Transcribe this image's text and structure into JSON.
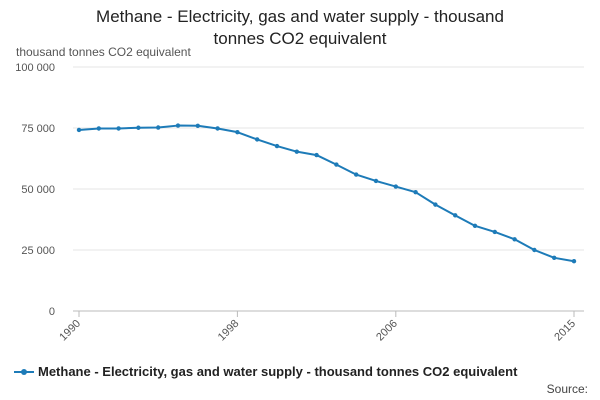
{
  "chart_data": {
    "type": "line",
    "title": "Methane - Electricity, gas and water supply - thousand tonnes CO2 equivalent",
    "title_line1": "Methane - Electricity, gas and water supply - thousand",
    "title_line2": "tonnes CO2 equivalent",
    "ylabel": "thousand tonnes CO2 equivalent",
    "xlabel": "",
    "ylim": [
      0,
      100000
    ],
    "xlim": [
      1990,
      2015
    ],
    "yticks": [
      0,
      25000,
      50000,
      75000,
      100000
    ],
    "ytick_labels": [
      "0",
      "25 000",
      "50 000",
      "75 000",
      "100 000"
    ],
    "xticks": [
      1990,
      1998,
      2006,
      2015
    ],
    "xtick_labels": [
      "1990",
      "1998",
      "2006",
      "2015"
    ],
    "grid": true,
    "legend_position": "bottom",
    "series": [
      {
        "name": "Methane - Electricity, gas and water supply - thousand tonnes CO2 equivalent",
        "color": "#1d7bb8",
        "x": [
          1990,
          1991,
          1992,
          1993,
          1994,
          1995,
          1996,
          1997,
          1998,
          1999,
          2000,
          2001,
          2002,
          2003,
          2004,
          2005,
          2006,
          2007,
          2008,
          2009,
          2010,
          2011,
          2012,
          2013,
          2014,
          2015
        ],
        "values": [
          74200,
          74800,
          74800,
          75100,
          75200,
          76000,
          75900,
          74800,
          73300,
          70300,
          67600,
          65300,
          63900,
          60000,
          55900,
          53300,
          51000,
          48700,
          43600,
          39200,
          34900,
          32400,
          29400,
          25000,
          21800,
          20400
        ]
      }
    ]
  },
  "legend": {
    "label": "Methane - Electricity, gas and water supply - thousand tonnes CO2 equivalent"
  },
  "footer": {
    "source": "Source:"
  }
}
